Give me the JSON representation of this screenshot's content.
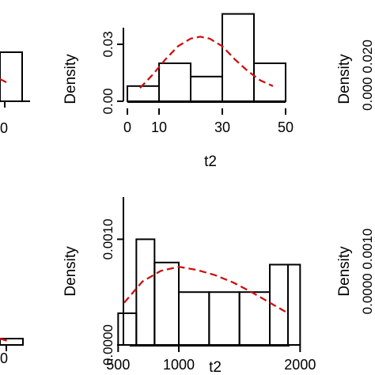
{
  "chart_data": [
    {
      "panel": "top-left-partial",
      "type": "bar",
      "visible_partial_text": {
        "x_tick_fragment": "0"
      },
      "bars_partial": [
        {
          "x": [
            0,
            10
          ],
          "density": 0.027
        }
      ]
    },
    {
      "panel": "top-center",
      "type": "histogram",
      "xlabel": "t2",
      "ylabel": "Density",
      "x_ticks": [
        0,
        10,
        30,
        50
      ],
      "y_ticks": [
        "0.00",
        "0.03"
      ],
      "xlim": [
        0,
        50
      ],
      "ylim": [
        0,
        0.045
      ],
      "bins": [
        {
          "x0": 0,
          "x1": 10,
          "density": 0.008
        },
        {
          "x0": 10,
          "x1": 20,
          "density": 0.02
        },
        {
          "x0": 20,
          "x1": 30,
          "density": 0.013
        },
        {
          "x0": 30,
          "x1": 40,
          "density": 0.046
        },
        {
          "x0": 40,
          "x1": 50,
          "density": 0.02
        }
      ],
      "density_curve": {
        "style": "dashed",
        "color": "#cc1111",
        "x": [
          4,
          8,
          12,
          16,
          20,
          23,
          26,
          30,
          34,
          38,
          42,
          46
        ],
        "y": [
          0.007,
          0.014,
          0.022,
          0.029,
          0.033,
          0.034,
          0.033,
          0.029,
          0.022,
          0.016,
          0.011,
          0.008
        ]
      }
    },
    {
      "panel": "top-right-partial",
      "type": "histogram",
      "ylabel": "Density",
      "visible_partial_text": {
        "y_tick_fragment": "0.000  0.020"
      }
    },
    {
      "panel": "bottom-left-partial",
      "type": "bar",
      "visible_partial_text": {
        "x_tick_fragment": "0"
      }
    },
    {
      "panel": "bottom-center",
      "type": "histogram",
      "xlabel": "t2",
      "ylabel": "Density",
      "x_ticks": [
        500,
        1000,
        2000
      ],
      "y_ticks": [
        "0.0000",
        "0.0010"
      ],
      "xlim": [
        400,
        2050
      ],
      "ylim": [
        0,
        0.0014
      ],
      "bins": [
        {
          "x0": 500,
          "x1": 650,
          "density": 0.0003
        },
        {
          "x0": 650,
          "x1": 800,
          "density": 0.001
        },
        {
          "x0": 800,
          "x1": 1000,
          "density": 0.00078
        },
        {
          "x0": 1000,
          "x1": 1250,
          "density": 0.0005
        },
        {
          "x0": 1250,
          "x1": 1500,
          "density": 0.0005
        },
        {
          "x0": 1500,
          "x1": 1750,
          "density": 0.0005
        },
        {
          "x0": 1750,
          "x1": 1900,
          "density": 0.00076
        },
        {
          "x0": 1900,
          "x1": 2000,
          "density": 0.00076
        }
      ],
      "density_curve": {
        "style": "dashed",
        "color": "#cc1111",
        "x": [
          550,
          700,
          850,
          1000,
          1150,
          1300,
          1450,
          1600,
          1750,
          1900
        ],
        "y": [
          0.0004,
          0.0006,
          0.0007,
          0.00074,
          0.00071,
          0.00066,
          0.00059,
          0.0005,
          0.0004,
          0.0003
        ]
      }
    },
    {
      "panel": "bottom-right-partial",
      "type": "histogram",
      "ylabel": "Density",
      "visible_partial_text": {
        "y_tick_fragment": "0.0000  0.0010"
      }
    }
  ]
}
